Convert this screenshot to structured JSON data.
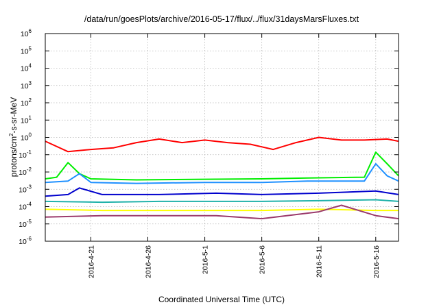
{
  "chart_data": {
    "type": "line",
    "title": "/data/run/goesPlots/archive/2016-05-17/flux/../flux/31daysMarsFluxes.txt",
    "xlabel": "Coordinated Universal Time (UTC)",
    "ylabel": "protons/cm²-s-sr-MeV",
    "ylabel_parts": {
      "pre": "protons/cm",
      "sup": "2",
      "post": "-s-sr-MeV"
    },
    "yscale": "log",
    "ylim": [
      1e-06,
      1000000.0
    ],
    "ytick_exponents": [
      -6,
      -5,
      -4,
      -3,
      -2,
      -1,
      0,
      1,
      2,
      3,
      4,
      5,
      6
    ],
    "ytick_base": "10",
    "xlim": [
      "2016-04-17",
      "2016-05-18"
    ],
    "xticks": [
      "2016-4-21",
      "2016-4-26",
      "2016-5-1",
      "2016-5-6",
      "2016-5-11",
      "2016-5-16"
    ],
    "grid": true,
    "series": [
      {
        "color": "#ff0000",
        "x": [
          "2016-04-17",
          "2016-04-19",
          "2016-04-21",
          "2016-04-23",
          "2016-04-25",
          "2016-04-27",
          "2016-04-29",
          "2016-05-01",
          "2016-05-03",
          "2016-05-05",
          "2016-05-07",
          "2016-05-09",
          "2016-05-11",
          "2016-05-13",
          "2016-05-15",
          "2016-05-17",
          "2016-05-18"
        ],
        "y": [
          0.6,
          0.15,
          0.2,
          0.25,
          0.5,
          0.8,
          0.5,
          0.7,
          0.5,
          0.4,
          0.2,
          0.5,
          1.0,
          0.7,
          0.7,
          0.8,
          0.6
        ]
      },
      {
        "color": "#00ee00",
        "x": [
          "2016-04-17",
          "2016-04-18",
          "2016-04-19",
          "2016-04-20",
          "2016-04-21",
          "2016-04-25",
          "2016-05-01",
          "2016-05-06",
          "2016-05-10",
          "2016-05-15",
          "2016-05-16",
          "2016-05-17",
          "2016-05-18"
        ],
        "y": [
          0.004,
          0.005,
          0.035,
          0.008,
          0.004,
          0.0035,
          0.0038,
          0.004,
          0.0045,
          0.005,
          0.14,
          0.03,
          0.006
        ]
      },
      {
        "color": "#1e90ff",
        "x": [
          "2016-04-17",
          "2016-04-19",
          "2016-04-20",
          "2016-04-21",
          "2016-04-25",
          "2016-05-01",
          "2016-05-06",
          "2016-05-10",
          "2016-05-15",
          "2016-05-16",
          "2016-05-17",
          "2016-05-18"
        ],
        "y": [
          0.0025,
          0.003,
          0.008,
          0.0025,
          0.0022,
          0.0025,
          0.0025,
          0.003,
          0.003,
          0.03,
          0.006,
          0.003
        ]
      },
      {
        "color": "#0000cd",
        "x": [
          "2016-04-17",
          "2016-04-19",
          "2016-04-20",
          "2016-04-22",
          "2016-04-27",
          "2016-05-02",
          "2016-05-06",
          "2016-05-11",
          "2016-05-16",
          "2016-05-18"
        ],
        "y": [
          0.0004,
          0.0005,
          0.0012,
          0.0005,
          0.0005,
          0.0006,
          0.0005,
          0.0006,
          0.0008,
          0.0005
        ]
      },
      {
        "color": "#20b2aa",
        "x": [
          "2016-04-17",
          "2016-04-22",
          "2016-04-27",
          "2016-05-02",
          "2016-05-06",
          "2016-05-11",
          "2016-05-16",
          "2016-05-18"
        ],
        "y": [
          0.0002,
          0.00018,
          0.0002,
          0.0002,
          0.0002,
          0.00022,
          0.00025,
          0.0002
        ]
      },
      {
        "color": "#ffff00",
        "x": [
          "2016-04-17",
          "2016-04-22",
          "2016-04-27",
          "2016-05-02",
          "2016-05-06",
          "2016-05-11",
          "2016-05-16",
          "2016-05-18"
        ],
        "y": [
          7e-05,
          6e-05,
          6e-05,
          6e-05,
          6e-05,
          7e-05,
          6e-05,
          6e-05
        ]
      },
      {
        "color": "#9b3a6b",
        "x": [
          "2016-04-17",
          "2016-04-22",
          "2016-04-27",
          "2016-05-02",
          "2016-05-06",
          "2016-05-11",
          "2016-05-13",
          "2016-05-16",
          "2016-05-18"
        ],
        "y": [
          2.5e-05,
          3e-05,
          3e-05,
          3e-05,
          2e-05,
          5e-05,
          0.00012,
          3e-05,
          2e-05
        ]
      }
    ]
  }
}
